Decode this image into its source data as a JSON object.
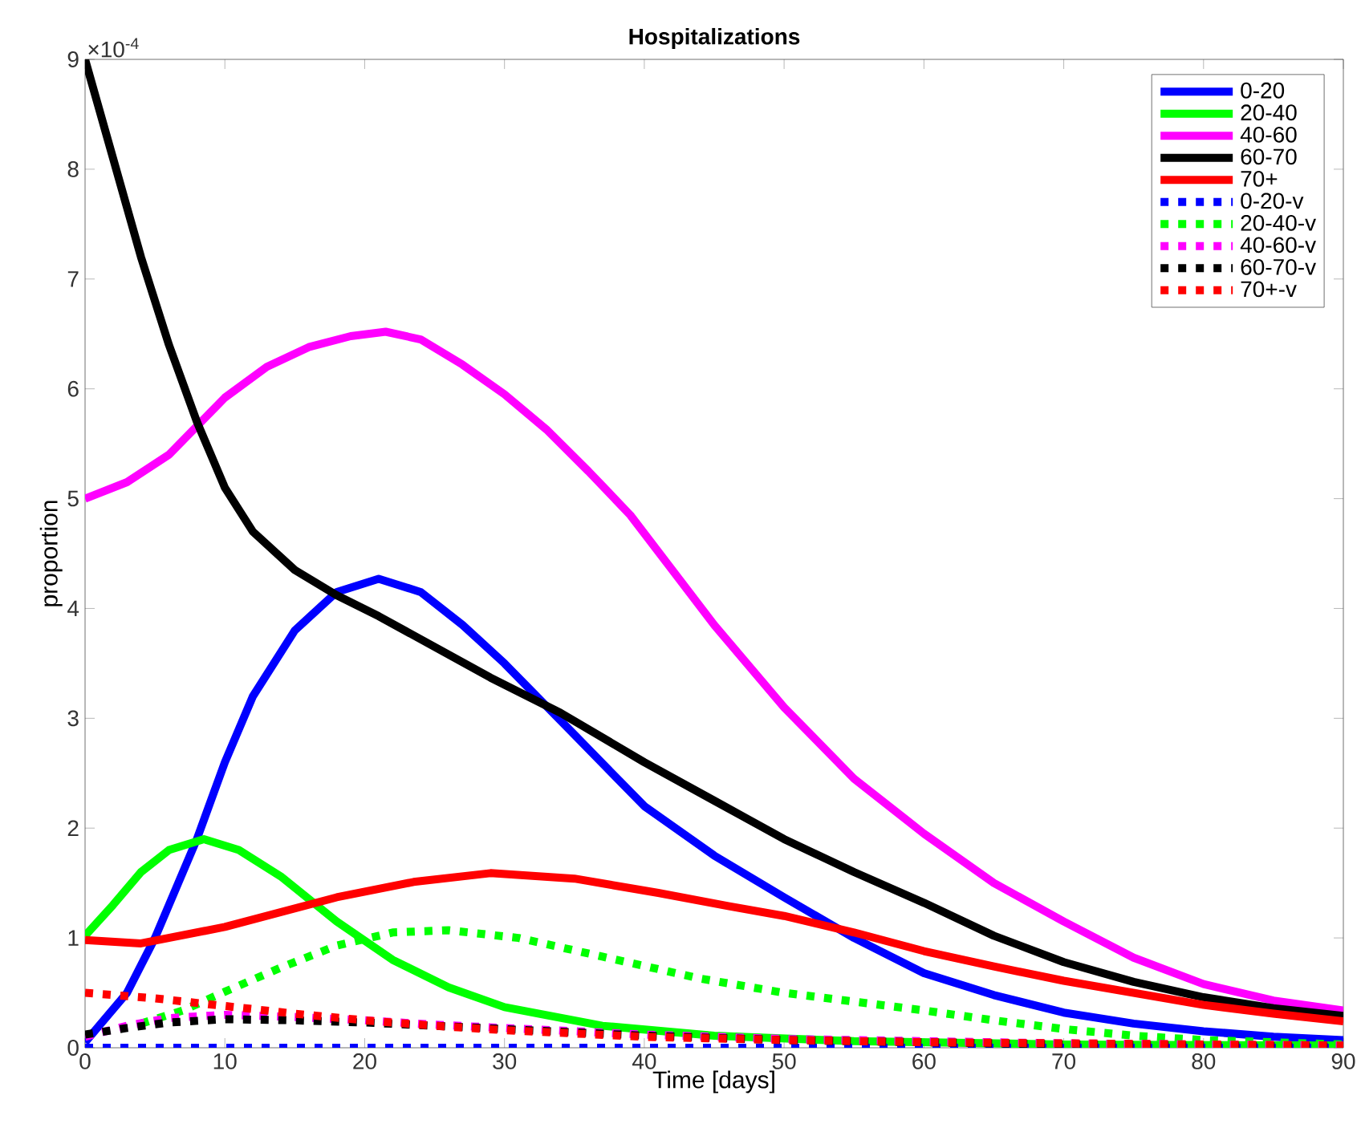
{
  "chart_data": {
    "type": "line",
    "title": "Hospitalizations",
    "xlabel": "Time [days]",
    "ylabel": "proportion",
    "annotations": [
      "×10$^{-4}$"
    ],
    "xlim": [
      0,
      90
    ],
    "xticks": [
      0,
      10,
      20,
      30,
      40,
      50,
      60,
      70,
      80,
      90
    ],
    "ylim": [
      0,
      9
    ],
    "yticks": [
      0,
      1,
      2,
      3,
      4,
      5,
      6,
      7,
      8,
      9
    ],
    "legend": "top right",
    "series": [
      {
        "name": "0-20",
        "color": "#0000ff",
        "line_style": "solid",
        "x": [
          0,
          3,
          5,
          8,
          10,
          12,
          15,
          18,
          21,
          24,
          27,
          30,
          35,
          40,
          45,
          50,
          55,
          60,
          65,
          70,
          75,
          80,
          85,
          90
        ],
        "values": [
          0.05,
          0.5,
          1.0,
          1.9,
          2.6,
          3.2,
          3.8,
          4.15,
          4.27,
          4.15,
          3.85,
          3.5,
          2.85,
          2.2,
          1.75,
          1.37,
          1.0,
          0.68,
          0.48,
          0.32,
          0.22,
          0.15,
          0.1,
          0.07
        ]
      },
      {
        "name": "20-40",
        "color": "#00ff00",
        "line_style": "solid",
        "x": [
          0,
          2,
          4,
          6,
          8.5,
          11,
          14,
          18,
          22,
          26,
          30,
          37,
          45,
          55,
          70,
          90
        ],
        "values": [
          1.02,
          1.3,
          1.6,
          1.8,
          1.9,
          1.8,
          1.56,
          1.15,
          0.8,
          0.55,
          0.37,
          0.2,
          0.11,
          0.06,
          0.03,
          0.02
        ]
      },
      {
        "name": "40-60",
        "color": "#ff00ff",
        "line_style": "solid",
        "x": [
          0,
          3,
          6,
          10,
          13,
          16,
          19,
          21.5,
          24,
          27,
          30,
          33,
          36,
          39,
          42,
          45,
          50,
          55,
          60,
          65,
          70,
          75,
          80,
          85,
          90
        ],
        "values": [
          5.0,
          5.15,
          5.4,
          5.92,
          6.2,
          6.38,
          6.48,
          6.52,
          6.45,
          6.22,
          5.95,
          5.63,
          5.25,
          4.85,
          4.35,
          3.85,
          3.1,
          2.45,
          1.95,
          1.5,
          1.15,
          0.82,
          0.58,
          0.43,
          0.34
        ]
      },
      {
        "name": "60-70",
        "color": "#000000",
        "line_style": "solid",
        "x": [
          0,
          2,
          4,
          6,
          8,
          10,
          12,
          15,
          18,
          21,
          25,
          29,
          34,
          40,
          45,
          50,
          55,
          60,
          65,
          70,
          75,
          80,
          85,
          90
        ],
        "values": [
          9.0,
          8.1,
          7.2,
          6.4,
          5.7,
          5.1,
          4.7,
          4.35,
          4.12,
          3.93,
          3.65,
          3.37,
          3.05,
          2.6,
          2.25,
          1.9,
          1.6,
          1.32,
          1.02,
          0.78,
          0.6,
          0.46,
          0.36,
          0.29
        ]
      },
      {
        "name": "70+",
        "color": "#ff0000",
        "line_style": "solid",
        "x": [
          0,
          4,
          10,
          18,
          23.5,
          29,
          35,
          41,
          46,
          50,
          55,
          60,
          65,
          70,
          75,
          80,
          85,
          90
        ],
        "values": [
          0.98,
          0.95,
          1.1,
          1.37,
          1.51,
          1.59,
          1.54,
          1.41,
          1.29,
          1.2,
          1.05,
          0.88,
          0.74,
          0.61,
          0.5,
          0.39,
          0.31,
          0.24
        ]
      },
      {
        "name": "0-20-v",
        "color": "#0000ff",
        "line_style": "dotted",
        "x": [
          0,
          90
        ],
        "values": [
          0,
          0
        ]
      },
      {
        "name": "20-40-v",
        "color": "#00ff00",
        "line_style": "dotted",
        "x": [
          4,
          7,
          10,
          14,
          18,
          22,
          26,
          31,
          37,
          44,
          50,
          55,
          60,
          65,
          70,
          75,
          80,
          85,
          90
        ],
        "values": [
          0.22,
          0.34,
          0.51,
          0.73,
          0.93,
          1.05,
          1.07,
          1.0,
          0.83,
          0.63,
          0.5,
          0.42,
          0.34,
          0.25,
          0.17,
          0.11,
          0.07,
          0.05,
          0.03
        ]
      },
      {
        "name": "40-60-v",
        "color": "#ff00ff",
        "line_style": "dotted",
        "x": [
          0,
          3,
          6,
          10,
          15,
          20,
          25,
          30,
          40,
          50,
          60,
          70,
          80,
          90
        ],
        "values": [
          0.1,
          0.2,
          0.27,
          0.3,
          0.28,
          0.25,
          0.21,
          0.18,
          0.12,
          0.08,
          0.06,
          0.04,
          0.03,
          0.02
        ]
      },
      {
        "name": "60-70-v",
        "color": "#000000",
        "line_style": "dotted",
        "x": [
          0,
          3,
          6,
          10,
          15,
          20,
          25,
          30,
          40,
          50,
          60,
          70,
          80,
          90
        ],
        "values": [
          0.12,
          0.18,
          0.23,
          0.26,
          0.25,
          0.23,
          0.2,
          0.17,
          0.11,
          0.07,
          0.05,
          0.03,
          0.02,
          0.01
        ]
      },
      {
        "name": "70+-v",
        "color": "#ff0000",
        "line_style": "dotted",
        "x": [
          0,
          5,
          10,
          15,
          20,
          25,
          30,
          35,
          40,
          50,
          60,
          70,
          80,
          90
        ],
        "values": [
          0.5,
          0.45,
          0.38,
          0.31,
          0.25,
          0.2,
          0.16,
          0.13,
          0.1,
          0.07,
          0.05,
          0.04,
          0.03,
          0.02
        ]
      }
    ]
  }
}
